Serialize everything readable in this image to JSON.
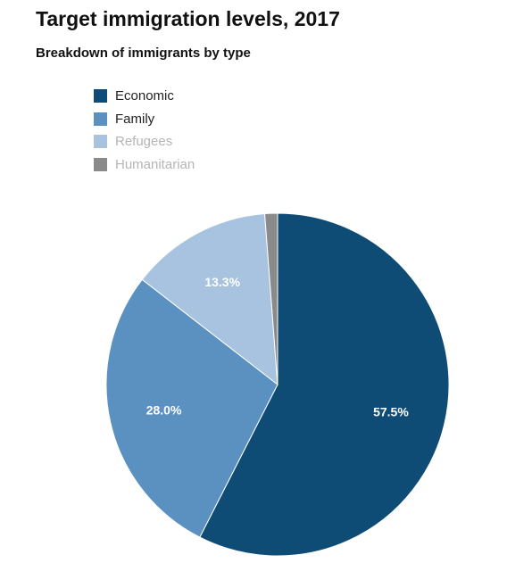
{
  "title": "Target immigration levels, 2017",
  "subtitle": "Breakdown of immigrants by type",
  "chart_data": {
    "type": "pie",
    "title": "Target immigration levels, 2017",
    "subtitle": "Breakdown of immigrants by type",
    "legend_position": "top-left",
    "categories": [
      "Economic",
      "Family",
      "Refugees",
      "Humanitarian"
    ],
    "values": [
      57.5,
      28.0,
      13.3,
      1.2
    ],
    "data_labels": [
      "57.5%",
      "28.0%",
      "13.3%",
      ""
    ],
    "colors": [
      "#0f4c75",
      "#5b91c1",
      "#a7c3e0",
      "#8a8a8a"
    ],
    "legend_text_colors": [
      "#222222",
      "#222222",
      "#b5b5b5",
      "#b5b5b5"
    ]
  }
}
